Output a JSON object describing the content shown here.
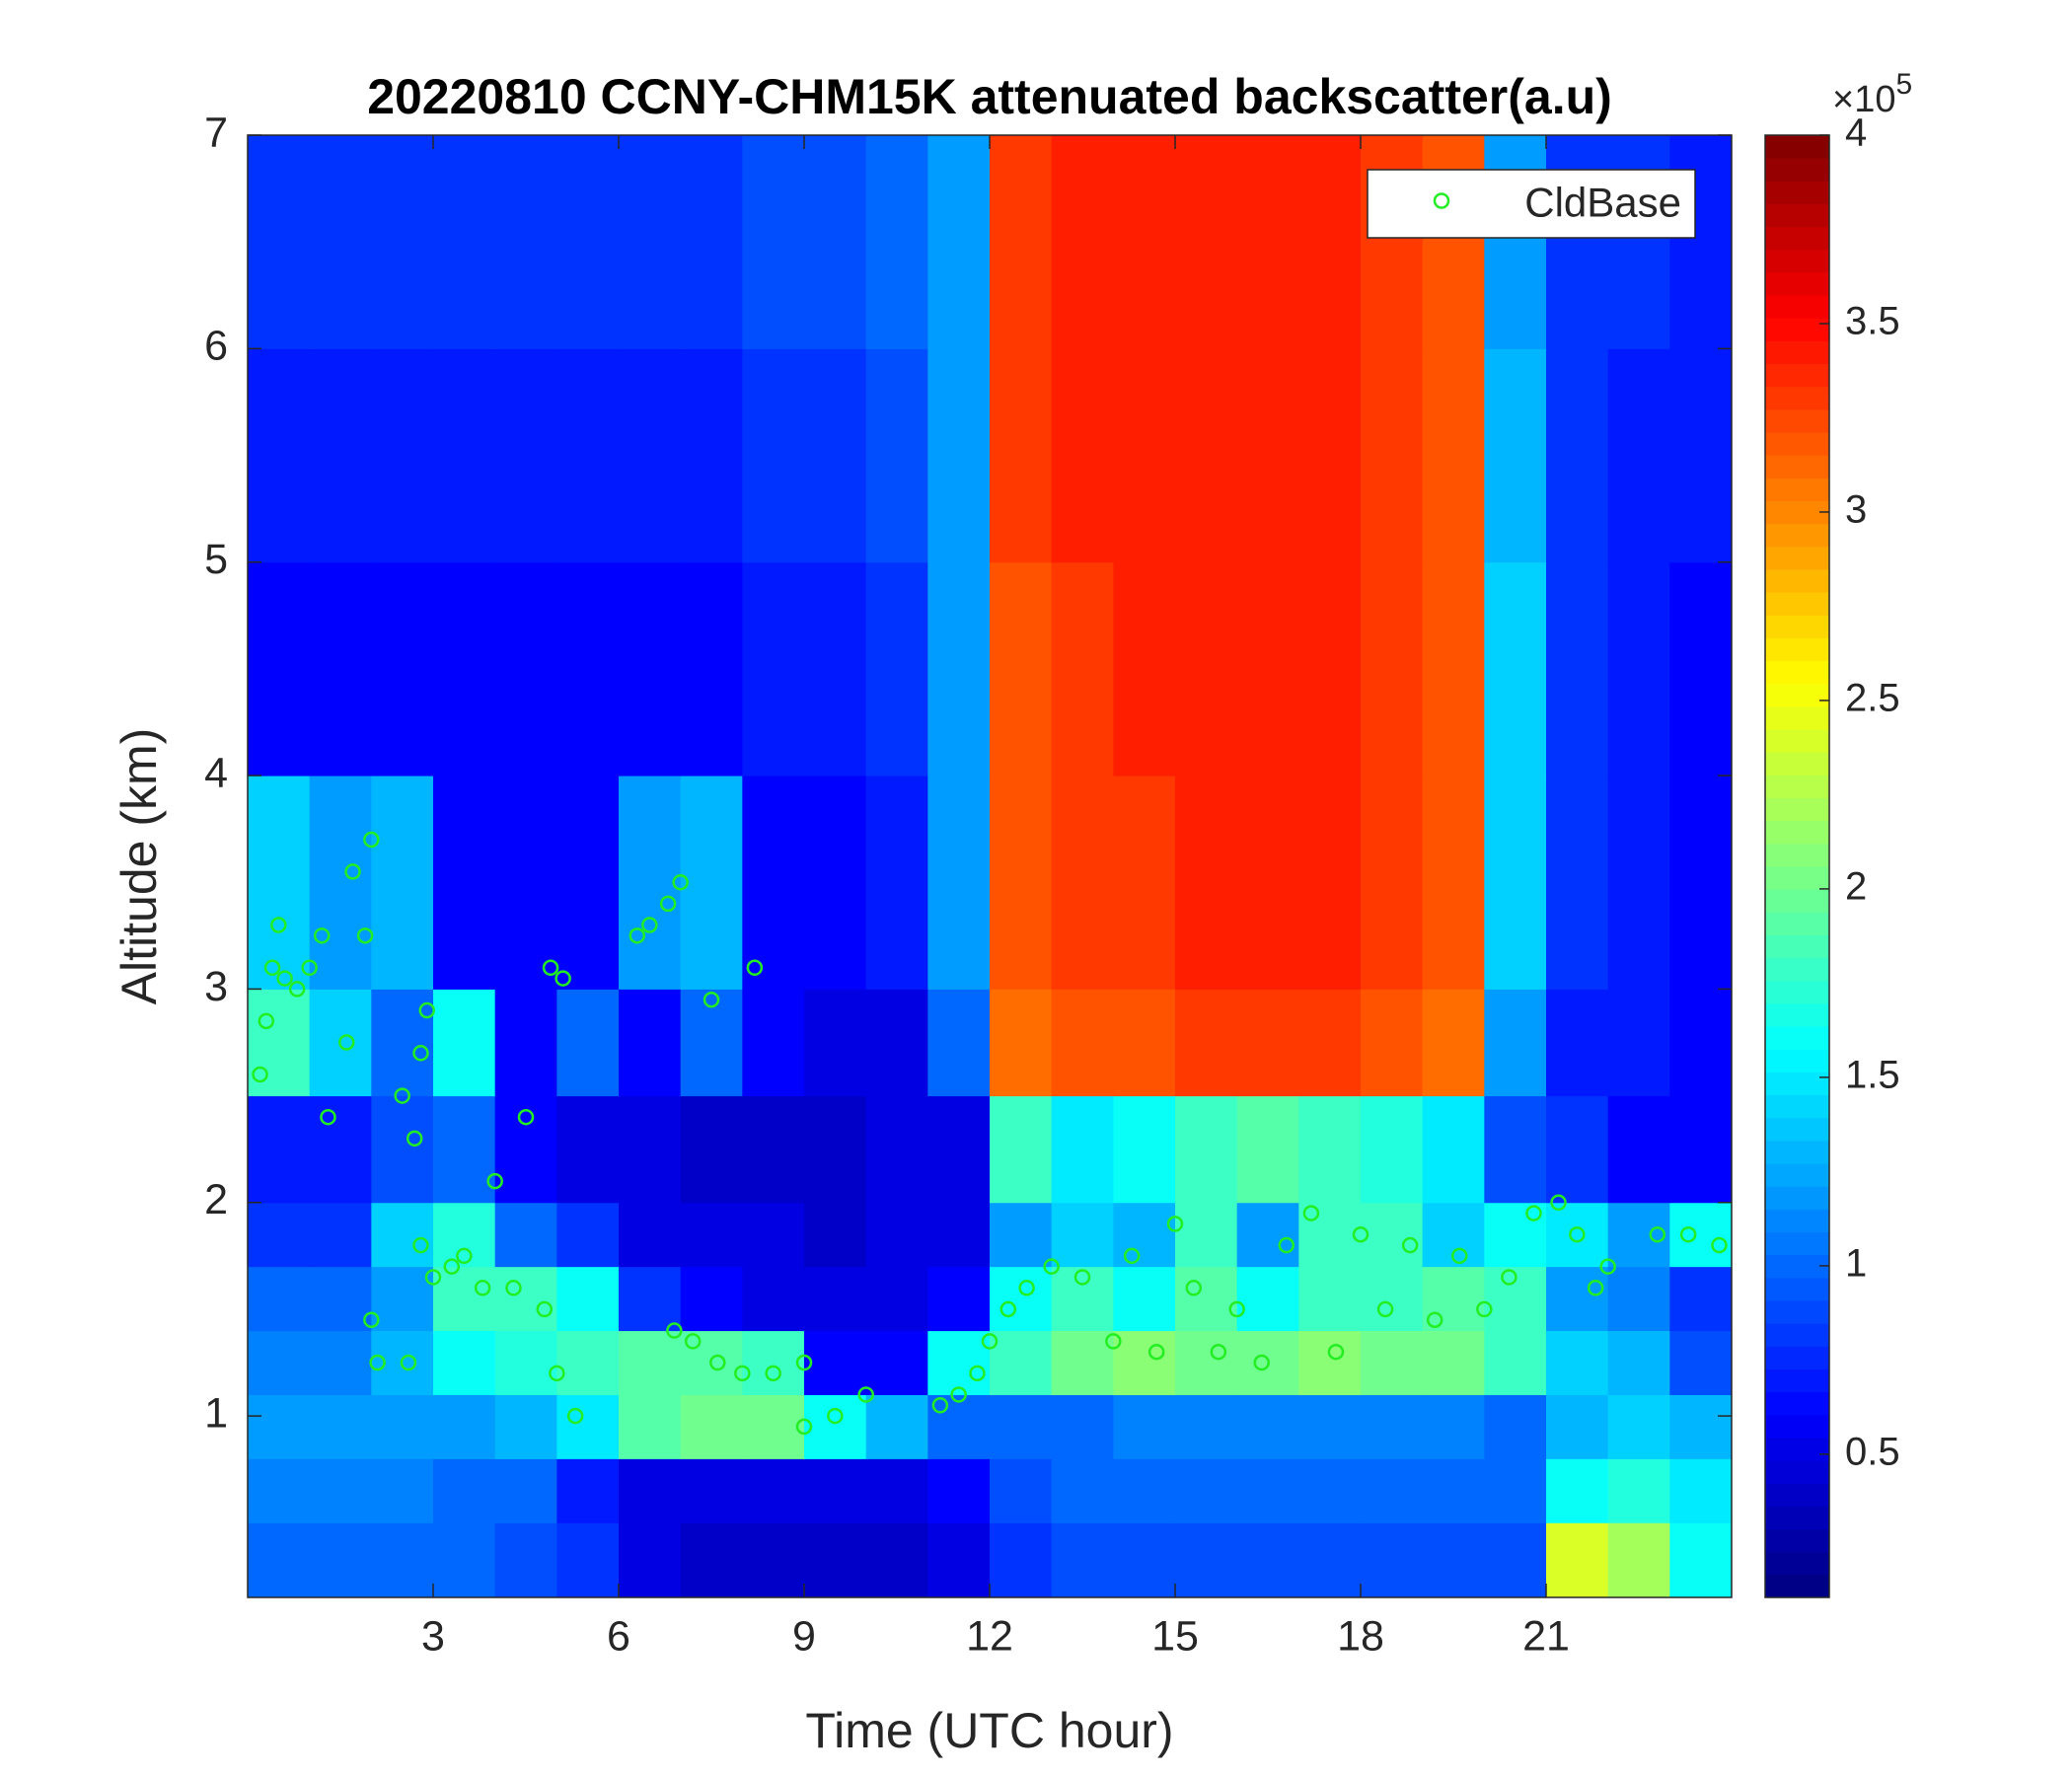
{
  "chart_data": {
    "type": "heatmap",
    "title": "20220810 CCNY-CHM15K attenuated backscatter(a.u)",
    "xlabel": "Time (UTC hour)",
    "ylabel": "Altitude (km)",
    "xlim": [
      0,
      24
    ],
    "ylim": [
      0.15,
      7
    ],
    "xticks": [
      3,
      6,
      9,
      12,
      15,
      18,
      21
    ],
    "yticks": [
      1,
      2,
      3,
      4,
      5,
      6,
      7
    ],
    "x_edges": [
      0,
      1,
      2,
      3,
      4,
      5,
      6,
      7,
      8,
      9,
      10,
      11,
      12,
      13,
      14,
      15,
      16,
      17,
      18,
      19,
      20,
      21,
      22,
      23,
      24
    ],
    "y_edges": [
      0.15,
      0.5,
      0.8,
      1.1,
      1.4,
      1.7,
      2,
      2.5,
      3,
      4,
      5,
      6,
      7
    ],
    "values": [
      [
        1.0,
        1.0,
        1.0,
        1.0,
        0.9,
        0.8,
        0.5,
        0.4,
        0.4,
        0.4,
        0.4,
        0.5,
        0.8,
        0.9,
        0.9,
        0.9,
        0.9,
        0.9,
        0.9,
        0.9,
        0.9,
        2.4,
        2.2,
        1.6
      ],
      [
        1.1,
        1.1,
        1.1,
        1.0,
        1.0,
        0.7,
        0.5,
        0.5,
        0.5,
        0.5,
        0.5,
        0.6,
        0.9,
        1.0,
        1.0,
        1.0,
        1.0,
        1.0,
        1.0,
        1.0,
        1.0,
        1.6,
        1.7,
        1.5
      ],
      [
        1.2,
        1.2,
        1.2,
        1.2,
        1.3,
        1.5,
        1.9,
        2.0,
        2.0,
        1.6,
        1.3,
        1.0,
        1.0,
        1.0,
        1.1,
        1.1,
        1.1,
        1.1,
        1.1,
        1.1,
        1.0,
        1.3,
        1.4,
        1.3
      ],
      [
        1.1,
        1.1,
        1.3,
        1.6,
        1.7,
        1.8,
        1.9,
        1.9,
        1.8,
        0.6,
        0.6,
        1.6,
        1.8,
        2.0,
        2.1,
        2.0,
        2.0,
        2.1,
        2.0,
        2.0,
        1.8,
        1.4,
        1.3,
        0.9
      ],
      [
        1.0,
        1.0,
        1.2,
        1.8,
        1.8,
        1.6,
        0.8,
        0.6,
        0.5,
        0.5,
        0.5,
        0.6,
        1.6,
        1.8,
        1.6,
        1.9,
        1.6,
        1.8,
        1.8,
        1.9,
        1.8,
        1.2,
        1.1,
        0.8
      ],
      [
        0.8,
        0.8,
        1.4,
        1.7,
        1.0,
        0.8,
        0.5,
        0.5,
        0.5,
        0.4,
        0.5,
        0.5,
        1.2,
        1.4,
        1.3,
        1.8,
        1.2,
        1.8,
        1.8,
        1.4,
        1.6,
        1.5,
        1.2,
        1.6
      ],
      [
        0.7,
        0.7,
        0.9,
        1.0,
        0.6,
        0.5,
        0.5,
        0.4,
        0.4,
        0.4,
        0.5,
        0.5,
        1.8,
        1.5,
        1.6,
        1.8,
        1.9,
        1.8,
        1.7,
        1.5,
        0.9,
        0.8,
        0.6,
        0.6
      ],
      [
        1.8,
        1.4,
        1.0,
        1.6,
        0.6,
        1.0,
        0.6,
        1.0,
        0.6,
        0.5,
        0.5,
        1.0,
        3.1,
        3.2,
        3.2,
        3.3,
        3.3,
        3.3,
        3.2,
        3.1,
        1.2,
        0.7,
        0.7,
        0.6
      ],
      [
        1.4,
        1.2,
        1.3,
        0.6,
        0.6,
        0.6,
        1.2,
        1.3,
        0.6,
        0.6,
        0.7,
        1.2,
        3.2,
        3.3,
        3.3,
        3.4,
        3.4,
        3.4,
        3.3,
        3.2,
        1.4,
        0.8,
        0.7,
        0.6
      ],
      [
        0.6,
        0.6,
        0.6,
        0.6,
        0.6,
        0.6,
        0.6,
        0.6,
        0.7,
        0.7,
        0.8,
        1.2,
        3.2,
        3.3,
        3.4,
        3.4,
        3.4,
        3.4,
        3.3,
        3.2,
        1.4,
        0.8,
        0.7,
        0.6
      ],
      [
        0.7,
        0.7,
        0.7,
        0.7,
        0.7,
        0.7,
        0.7,
        0.7,
        0.8,
        0.8,
        0.9,
        1.2,
        3.3,
        3.4,
        3.4,
        3.4,
        3.4,
        3.4,
        3.3,
        3.2,
        1.3,
        0.8,
        0.7,
        0.7
      ],
      [
        0.8,
        0.8,
        0.8,
        0.8,
        0.8,
        0.8,
        0.8,
        0.8,
        0.9,
        0.9,
        1.0,
        1.2,
        3.3,
        3.4,
        3.4,
        3.4,
        3.4,
        3.4,
        3.3,
        3.2,
        1.2,
        0.8,
        0.8,
        0.7
      ]
    ],
    "colormap": "jet",
    "clim": [
      0.12,
      4
    ],
    "cticks": [
      0.5,
      1,
      1.5,
      2,
      2.5,
      3,
      3.5,
      4
    ],
    "cbar_multiplier": "×10",
    "cbar_exponent": "5",
    "legend": "northeast",
    "overlay": {
      "type": "scatter",
      "name": "CldBase",
      "color": "#22ee22",
      "x": [
        0.2,
        0.3,
        0.4,
        0.5,
        0.6,
        0.8,
        1.0,
        1.2,
        1.3,
        1.6,
        1.7,
        1.9,
        2.0,
        2.0,
        2.1,
        2.5,
        2.6,
        2.7,
        2.8,
        2.9,
        2.8,
        3.0,
        3.3,
        3.5,
        3.8,
        4.0,
        4.3,
        4.5,
        4.8,
        4.9,
        5.0,
        5.1,
        5.3,
        6.3,
        6.5,
        6.8,
        7.0,
        6.9,
        7.2,
        7.5,
        7.6,
        8.0,
        8.2,
        8.5,
        9.0,
        9.0,
        9.5,
        10.0,
        11.2,
        11.5,
        11.8,
        12.0,
        12.3,
        12.6,
        13.0,
        13.5,
        14.0,
        14.3,
        14.7,
        15.0,
        15.3,
        15.7,
        16.0,
        16.4,
        16.8,
        17.2,
        17.6,
        18.0,
        18.4,
        18.8,
        19.2,
        19.6,
        20.0,
        20.4,
        20.8,
        21.2,
        21.5,
        21.8,
        22.0,
        22.8,
        23.3,
        23.8
      ],
      "y": [
        2.6,
        2.85,
        3.1,
        3.3,
        3.05,
        3.0,
        3.1,
        3.25,
        2.4,
        2.75,
        3.55,
        3.25,
        3.7,
        1.45,
        1.25,
        2.5,
        1.25,
        2.3,
        2.7,
        2.9,
        1.8,
        1.65,
        1.7,
        1.75,
        1.6,
        2.1,
        1.6,
        2.4,
        1.5,
        3.1,
        1.2,
        3.05,
        1.0,
        3.25,
        3.3,
        3.4,
        3.5,
        1.4,
        1.35,
        2.95,
        1.25,
        1.2,
        3.1,
        1.2,
        1.25,
        0.95,
        1.0,
        1.1,
        1.05,
        1.1,
        1.2,
        1.35,
        1.5,
        1.6,
        1.7,
        1.65,
        1.35,
        1.75,
        1.3,
        1.9,
        1.6,
        1.3,
        1.5,
        1.25,
        1.8,
        1.95,
        1.3,
        1.85,
        1.5,
        1.8,
        1.45,
        1.75,
        1.5,
        1.65,
        1.95,
        2.0,
        1.85,
        1.6,
        1.7,
        1.85,
        1.85,
        1.8
      ]
    }
  }
}
